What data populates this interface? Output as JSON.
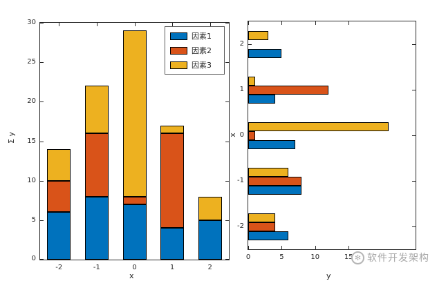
{
  "colors": {
    "series1_blue": "#0072BD",
    "series2_red": "#D95319",
    "series3_yellow": "#EDB120",
    "axis": "#252525",
    "bar_edge": "#000000",
    "watermark_gray": "#a8a8a8"
  },
  "legend": {
    "items": [
      {
        "label": "因素1",
        "color": "#0072BD"
      },
      {
        "label": "因素2",
        "color": "#D95319"
      },
      {
        "label": "因素3",
        "color": "#EDB120"
      }
    ]
  },
  "watermark": {
    "text": "软件开发架构"
  },
  "chart_data": [
    {
      "type": "bar",
      "mode": "stacked",
      "title": "",
      "xlabel": "x",
      "ylabel": "Σ y",
      "categories": [
        -2,
        -1,
        0,
        1,
        2
      ],
      "series": [
        {
          "name": "因素1",
          "color": "#0072BD",
          "values": [
            6,
            8,
            7,
            4,
            5
          ]
        },
        {
          "name": "因素2",
          "color": "#D95319",
          "values": [
            4,
            8,
            1,
            12,
            0
          ]
        },
        {
          "name": "因素3",
          "color": "#EDB120",
          "values": [
            4,
            6,
            21,
            1,
            3
          ]
        }
      ],
      "stack_totals": [
        14,
        22,
        29,
        17,
        8
      ],
      "ylim": [
        0,
        30
      ],
      "yticks": [
        0,
        5,
        10,
        15,
        20,
        25,
        30
      ],
      "grid": false,
      "legend_position": "northeast"
    },
    {
      "type": "bar",
      "mode": "grouped-horizontal",
      "title": "",
      "xlabel": "y",
      "ylabel": "x",
      "categories": [
        -2,
        -1,
        0,
        1,
        2
      ],
      "series": [
        {
          "name": "因素1",
          "color": "#0072BD",
          "values": [
            6,
            8,
            7,
            4,
            5
          ]
        },
        {
          "name": "因素2",
          "color": "#D95319",
          "values": [
            4,
            8,
            1,
            12,
            0
          ]
        },
        {
          "name": "因素3",
          "color": "#EDB120",
          "values": [
            4,
            6,
            21,
            1,
            3
          ]
        }
      ],
      "xlim": [
        0,
        25
      ],
      "xticks": [
        0,
        5,
        10,
        15
      ],
      "grid": false,
      "legend_position": "none"
    }
  ]
}
